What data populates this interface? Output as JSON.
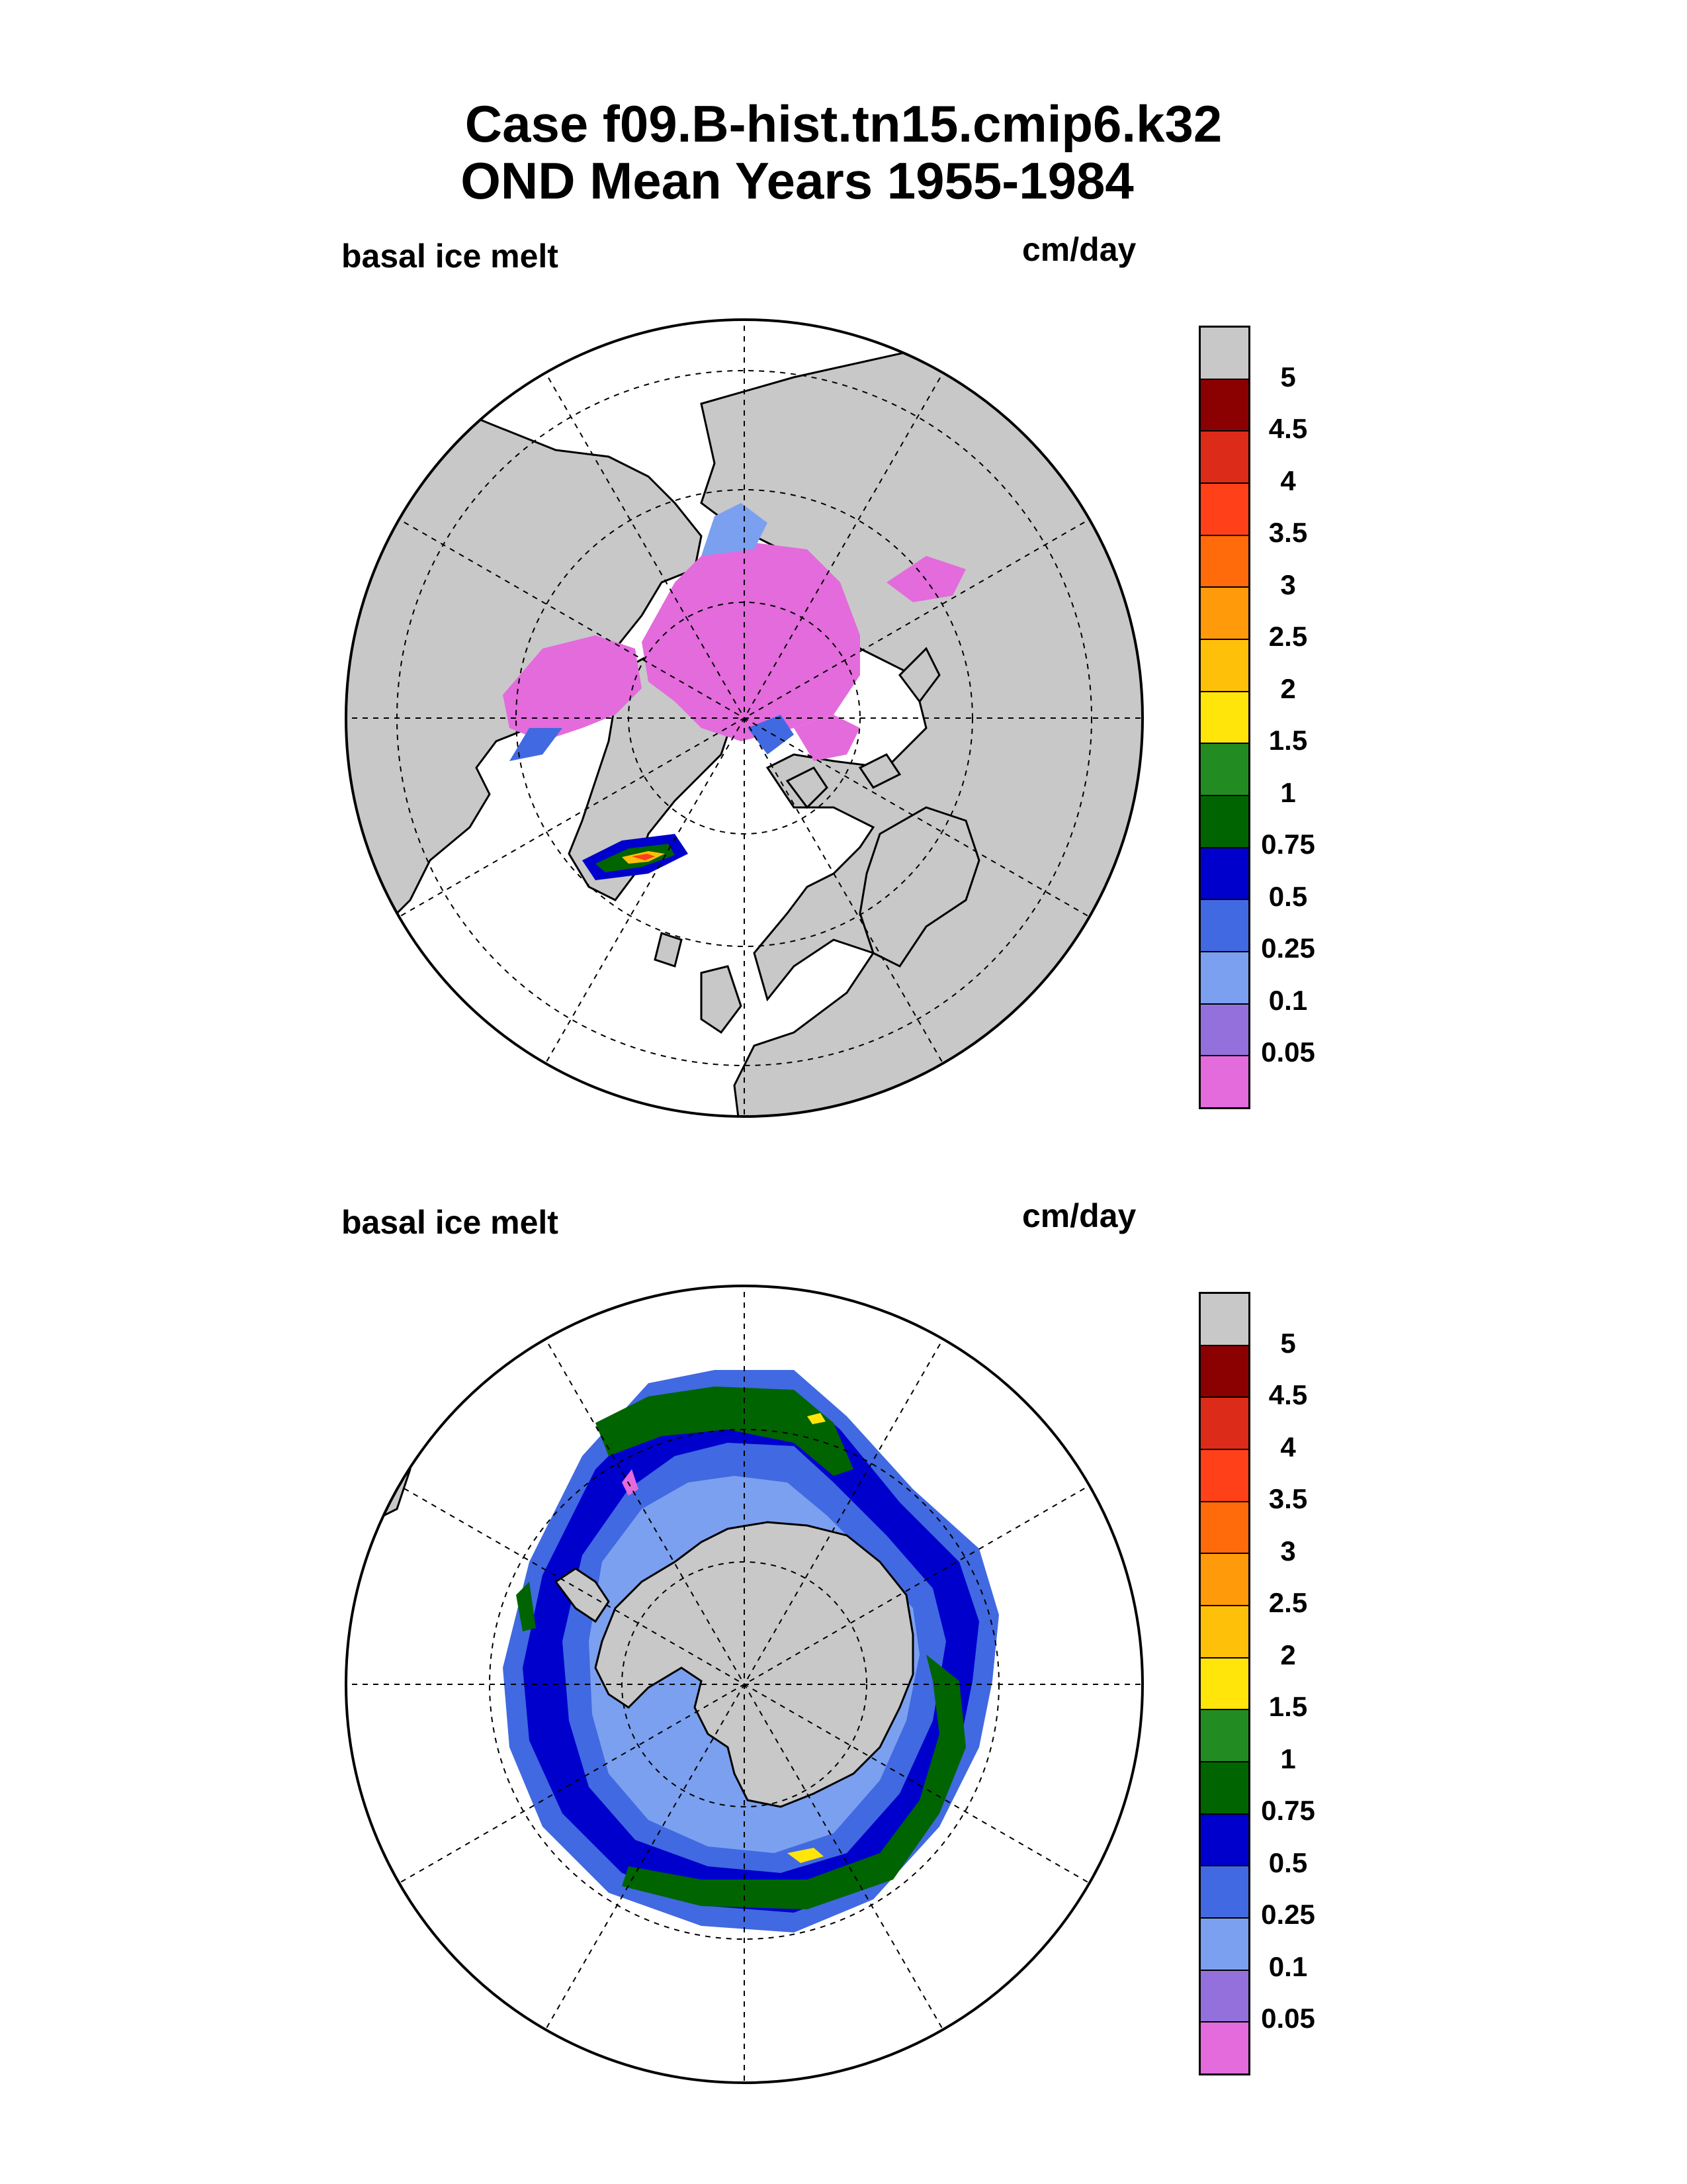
{
  "title": {
    "line1": "Case f09.B-hist.tn15.cmip6.k32",
    "line2": "OND Mean   Years 1955-1984"
  },
  "panels": [
    {
      "id": "north",
      "variable": "basal ice melt",
      "units": "cm/day",
      "region": "Northern Hemisphere polar stereographic"
    },
    {
      "id": "south",
      "variable": "basal ice melt",
      "units": "cm/day",
      "region": "Southern Hemisphere polar stereographic"
    }
  ],
  "colorbar": {
    "levels": [
      "5",
      "4.5",
      "4",
      "3.5",
      "3",
      "2.5",
      "2",
      "1.5",
      "1",
      "0.75",
      "0.5",
      "0.25",
      "0.1",
      "0.05"
    ],
    "colors": [
      "#c8c8c8",
      "#8b0000",
      "#dc2b18",
      "#ff4019",
      "#ff6a0a",
      "#ff9a0a",
      "#ffc00a",
      "#ffe50a",
      "#228b22",
      "#006400",
      "#0000cd",
      "#4169e1",
      "#7ba0f0",
      "#9370db",
      "#e36bdc"
    ]
  },
  "colors": {
    "land": "#c8c8c8",
    "ocean": "#ffffff",
    "ice_melt_low": "#e36bdc"
  }
}
